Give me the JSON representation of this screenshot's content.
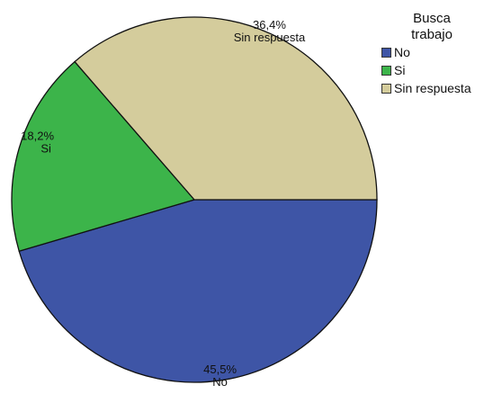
{
  "chart_data": {
    "type": "pie",
    "legend_title_lines": [
      "Busca",
      "trabajo"
    ],
    "legend_placement": "top-right",
    "slices": [
      {
        "label": "No",
        "value": 45.5,
        "value_label": "45,5%",
        "color": "#3e55a6"
      },
      {
        "label": "Si",
        "value": 18.2,
        "value_label": "18,2%",
        "color": "#3cb44a"
      },
      {
        "label": "Sin respuesta",
        "value": 36.4,
        "value_label": "36,4%",
        "color": "#d4cc9c"
      }
    ]
  }
}
